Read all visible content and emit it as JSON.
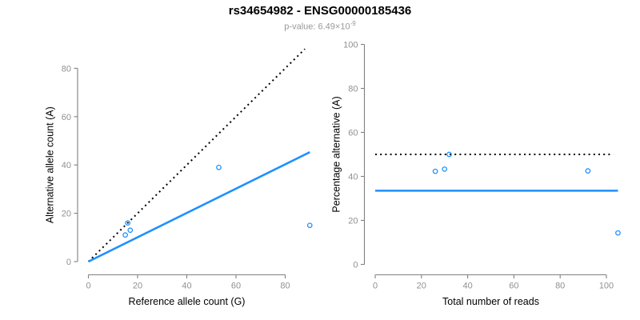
{
  "header": {
    "title": "rs34654982 - ENSG00000185436",
    "subtitle_prefix": "p-value: 6.49×10",
    "subtitle_exponent": "-9"
  },
  "colors": {
    "accent_blue": "#1E90FF",
    "point_blue": "#1E90FF",
    "dotted_black": "#000000",
    "axis_gray": "#808080",
    "tick_label_gray": "#919191",
    "axis_title_black": "#000000",
    "subtitle_gray": "#999999"
  },
  "chart_data": [
    {
      "type": "scatter",
      "panel": "left",
      "title": "",
      "xlabel": "Reference allele count (G)",
      "ylabel": "Alternative allele count (A)",
      "xticks": [
        0,
        20,
        40,
        60,
        80
      ],
      "yticks": [
        0,
        20,
        40,
        60,
        80
      ],
      "xlim": [
        0,
        92
      ],
      "ylim": [
        0,
        88
      ],
      "grid": false,
      "legend": null,
      "points": [
        [
          15,
          11
        ],
        [
          17,
          13
        ],
        [
          16,
          16
        ],
        [
          53,
          39
        ],
        [
          90,
          15
        ]
      ],
      "lines": [
        {
          "name": "identity-line",
          "style": "dotted",
          "color": "#000000",
          "width": 2,
          "from": [
            0,
            0
          ],
          "to": [
            88,
            88
          ]
        },
        {
          "name": "fitted-ratio-line",
          "style": "solid",
          "color": "#1E90FF",
          "width": 2.6,
          "from": [
            0,
            0
          ],
          "to": [
            90,
            45.3
          ]
        }
      ]
    },
    {
      "type": "scatter",
      "panel": "right",
      "title": "",
      "xlabel": "Total number of reads",
      "ylabel": "Percentage alternative (A)",
      "xticks": [
        0,
        20,
        40,
        60,
        80,
        100
      ],
      "yticks": [
        0,
        20,
        40,
        60,
        80,
        100
      ],
      "xlim": [
        0,
        106
      ],
      "ylim": [
        0,
        100
      ],
      "grid": false,
      "legend": null,
      "points": [
        [
          26,
          42.3
        ],
        [
          30,
          43.3
        ],
        [
          32,
          50
        ],
        [
          92,
          42.5
        ],
        [
          105,
          14.3
        ]
      ],
      "lines": [
        {
          "name": "null-50-percent-line",
          "style": "dotted",
          "color": "#000000",
          "width": 2,
          "from": [
            0,
            50
          ],
          "to": [
            103,
            50
          ]
        },
        {
          "name": "mean-percentage-line",
          "style": "solid",
          "color": "#1E90FF",
          "width": 2.6,
          "from": [
            0,
            33.5
          ],
          "to": [
            105,
            33.5
          ]
        }
      ]
    }
  ]
}
